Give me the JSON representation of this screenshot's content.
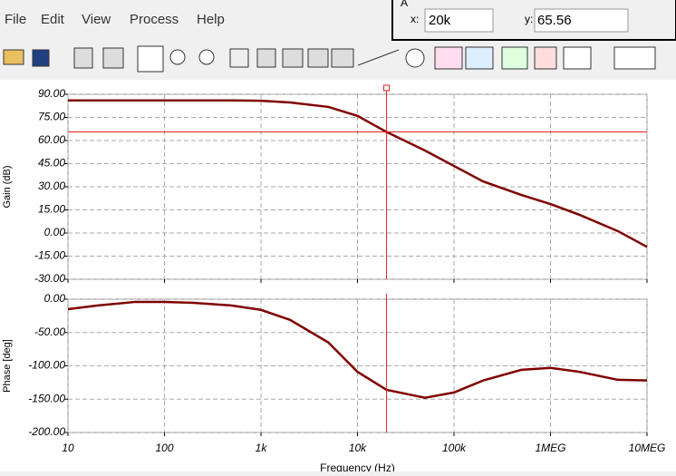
{
  "menu": [
    "File",
    "Edit",
    "View",
    "Process",
    "Help"
  ],
  "cursor_panel": {
    "label": "A",
    "x_label": "x:",
    "x_value": "20k",
    "y_label": "y:",
    "y_value": "65.56"
  },
  "chart_data": [
    {
      "type": "line",
      "ylabel": "Gain (dB)",
      "xscale": "log",
      "grid": true,
      "x": [
        10,
        20,
        50,
        100,
        200,
        500,
        1000,
        2000,
        5000,
        10000,
        20000,
        50000,
        100000,
        200000,
        500000,
        1000000,
        2000000,
        5000000,
        10000000
      ],
      "series": [
        {
          "color": "#800000",
          "values": [
            86,
            86,
            86,
            86,
            86,
            86,
            85.8,
            84.7,
            81.8,
            76,
            65.56,
            53.5,
            43.5,
            33.5,
            24.7,
            18.8,
            11.8,
            1.2,
            -9
          ]
        }
      ],
      "xlim": [
        10,
        10000000
      ],
      "xticks": [
        10,
        100,
        1000,
        10000,
        100000,
        1000000,
        10000000
      ],
      "ylim": [
        -30,
        90
      ],
      "yticks": [
        {
          "value": -30,
          "label": "-30.00"
        },
        {
          "value": -15,
          "label": "-15.00"
        },
        {
          "value": 0,
          "label": "0.00"
        },
        {
          "value": 15,
          "label": "15.00"
        },
        {
          "value": 30,
          "label": "30.00"
        },
        {
          "value": 45,
          "label": "45.00"
        },
        {
          "value": 60,
          "label": "60.00"
        },
        {
          "value": 75,
          "label": "75.00"
        },
        {
          "value": 90,
          "label": "90.00"
        }
      ],
      "cursor": {
        "x": 20000,
        "y": 65.56,
        "color": "#e02020"
      }
    },
    {
      "type": "line",
      "ylabel": "Phase [deg]",
      "xlabel": "Frequency (Hz)",
      "xscale": "log",
      "grid": true,
      "x": [
        10,
        20,
        50,
        100,
        200,
        500,
        1000,
        2000,
        5000,
        10000,
        20000,
        50000,
        100000,
        200000,
        500000,
        1000000,
        2000000,
        5000000,
        10000000
      ],
      "series": [
        {
          "color": "#800000",
          "values": [
            -15,
            -9.5,
            -4,
            -4,
            -5.4,
            -9.5,
            -16,
            -31,
            -65,
            -109,
            -136,
            -148,
            -140,
            -122,
            -106,
            -103,
            -109,
            -121,
            -122
          ]
        }
      ],
      "xlim": [
        10,
        10000000
      ],
      "xticks": [
        10,
        100,
        {
          "value": 1000,
          "label": "1k"
        },
        {
          "value": 10000,
          "label": "10k"
        },
        {
          "value": 100000,
          "label": "100k"
        },
        {
          "value": 1000000,
          "label": "1MEG"
        },
        {
          "value": 10000000,
          "label": "10MEG"
        }
      ],
      "ylim": [
        -200,
        0
      ],
      "yticks": [
        {
          "value": -200,
          "label": "-200.00"
        },
        {
          "value": -150,
          "label": "-150.00"
        },
        {
          "value": -100,
          "label": "-100.00"
        },
        {
          "value": -50,
          "label": "-50.00"
        },
        {
          "value": 0,
          "label": "0.00"
        }
      ],
      "cursor": {
        "x": 20000,
        "color": "#e02020"
      }
    }
  ]
}
